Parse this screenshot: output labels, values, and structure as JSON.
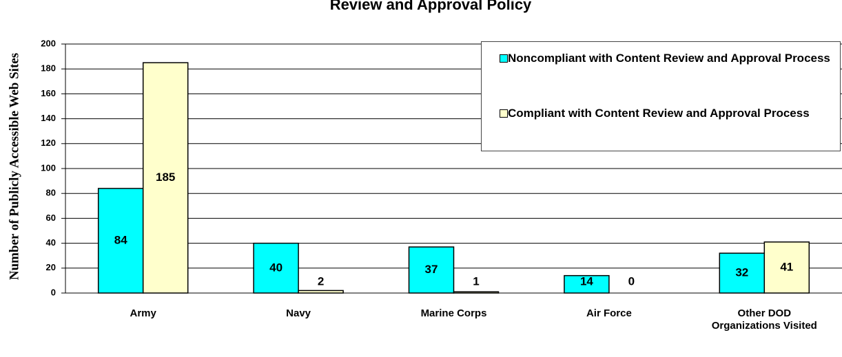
{
  "chart_data": {
    "type": "bar",
    "title": "Review and Approval Policy",
    "y_label": "Number of Publicly Accessible Web Sites",
    "categories": [
      "Army",
      "Navy",
      "Marine Corps",
      "Air Force",
      "Other DOD Organizations Visited"
    ],
    "series": [
      {
        "name": "Noncompliant with Content Review and Approval Process",
        "color": "#00ffff",
        "values": [
          84,
          40,
          37,
          14,
          32
        ]
      },
      {
        "name": "Compliant with Content Review and Approval Process",
        "color": "#ffffcc",
        "values": [
          185,
          2,
          1,
          0,
          41
        ]
      }
    ],
    "ylim": [
      0,
      200
    ],
    "yticks": [
      0,
      20,
      40,
      60,
      80,
      100,
      120,
      140,
      160,
      180,
      200
    ],
    "grid": true,
    "legend": "upper right"
  }
}
